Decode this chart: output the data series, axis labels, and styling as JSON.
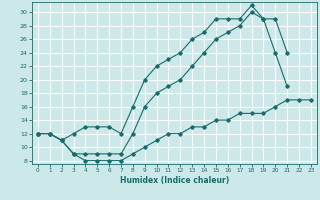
{
  "xlabel": "Humidex (Indice chaleur)",
  "bg_color": "#cce8e8",
  "grid_color": "#ffffff",
  "line_color": "#1a6b6b",
  "xlim": [
    -0.5,
    23.5
  ],
  "ylim": [
    7.5,
    31.5
  ],
  "yticks": [
    8,
    10,
    12,
    14,
    16,
    18,
    20,
    22,
    24,
    26,
    28,
    30
  ],
  "xticks": [
    0,
    1,
    2,
    3,
    4,
    5,
    6,
    7,
    8,
    9,
    10,
    11,
    12,
    13,
    14,
    15,
    16,
    17,
    18,
    19,
    20,
    21,
    22,
    23
  ],
  "line1_x": [
    0,
    1,
    2,
    3,
    4,
    5,
    6,
    7,
    8,
    9,
    10,
    11,
    12,
    13,
    14,
    15,
    16,
    17,
    18,
    19,
    20,
    21
  ],
  "line1_y": [
    12,
    12,
    11,
    12,
    13,
    13,
    13,
    12,
    16,
    20,
    22,
    23,
    24,
    26,
    27,
    29,
    29,
    29,
    31,
    29,
    24,
    19
  ],
  "line2_x": [
    0,
    1,
    2,
    3,
    4,
    5,
    6,
    7,
    8,
    9,
    10,
    11,
    12,
    13,
    14,
    15,
    16,
    17,
    18,
    19,
    20,
    21
  ],
  "line2_y": [
    12,
    12,
    11,
    9,
    9,
    9,
    9,
    9,
    12,
    16,
    18,
    19,
    20,
    22,
    24,
    26,
    27,
    28,
    30,
    29,
    29,
    24
  ],
  "line3_x": [
    0,
    1,
    2,
    3,
    4,
    5,
    6,
    7,
    8,
    9,
    10,
    11,
    12,
    13,
    14,
    15,
    16,
    17,
    18,
    19,
    20,
    21,
    22,
    23
  ],
  "line3_y": [
    12,
    12,
    11,
    9,
    8,
    8,
    8,
    8,
    9,
    10,
    11,
    12,
    12,
    13,
    13,
    14,
    14,
    15,
    15,
    15,
    16,
    17,
    17,
    17
  ]
}
